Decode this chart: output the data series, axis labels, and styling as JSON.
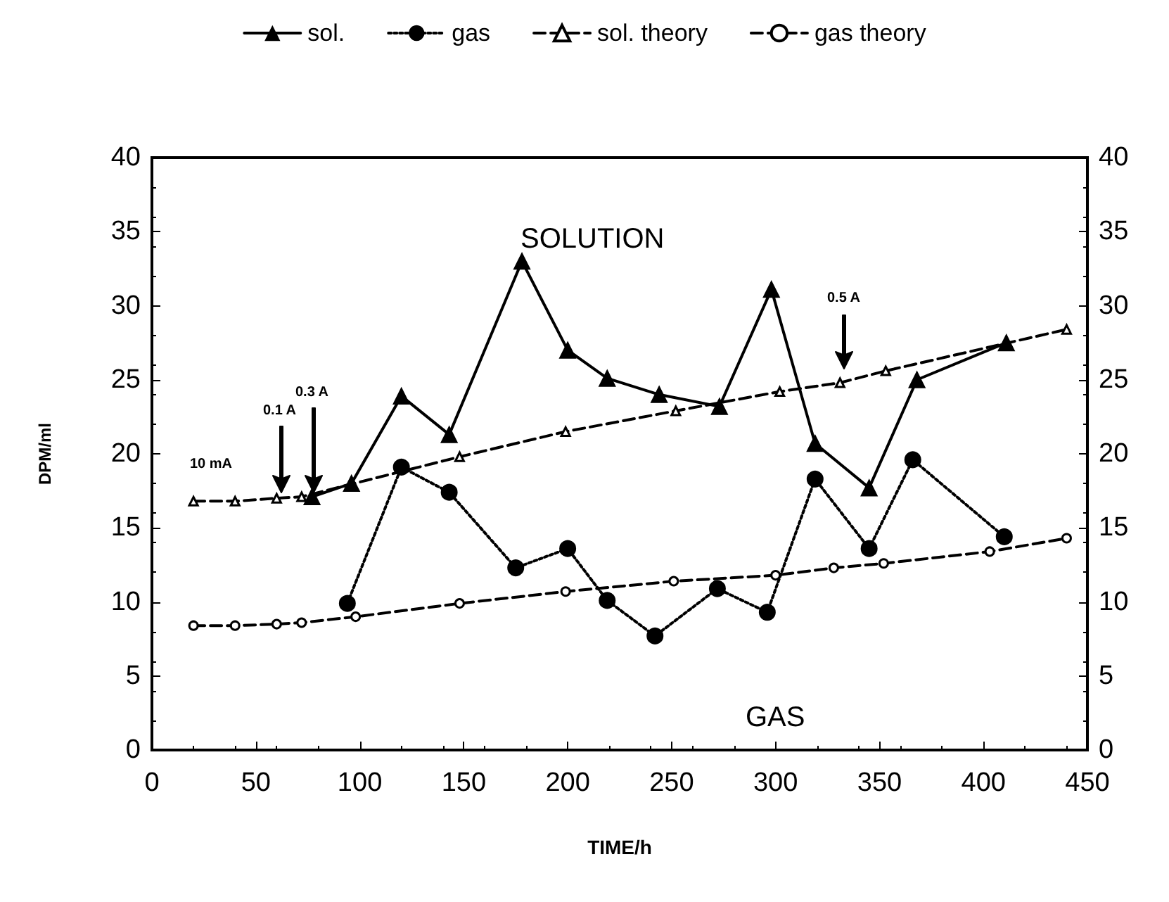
{
  "chart_data": {
    "type": "line",
    "xlabel": "TIME/h",
    "ylabel": "DPM/ml",
    "xlim": [
      0,
      450
    ],
    "xticks": [
      0,
      50,
      100,
      150,
      200,
      250,
      300,
      350,
      400,
      450
    ],
    "ylim": [
      0,
      40
    ],
    "yticks": [
      0,
      5,
      10,
      15,
      20,
      25,
      30,
      35,
      40
    ],
    "y2lim": [
      0,
      40
    ],
    "y2ticks": [
      0,
      5,
      10,
      15,
      20,
      25,
      30,
      35,
      40
    ],
    "grid": false,
    "legend": "top",
    "series": [
      {
        "name": "sol.",
        "color": "#000000",
        "marker": "triangle",
        "line_style": "solid",
        "x": [
          77,
          96,
          120,
          143,
          178,
          200,
          219,
          244,
          273,
          298,
          319,
          345,
          368,
          411
        ],
        "values": [
          17.1,
          18.0,
          23.9,
          21.3,
          33.0,
          27.0,
          25.1,
          24.0,
          23.2,
          31.1,
          20.7,
          17.7,
          25.0,
          27.5
        ]
      },
      {
        "name": "gas",
        "color": "#000000",
        "marker": "circle",
        "line_style": "dotted",
        "x": [
          94,
          120,
          143,
          175,
          200,
          219,
          242,
          272,
          296,
          319,
          345,
          366,
          410
        ],
        "values": [
          9.9,
          19.1,
          17.4,
          12.3,
          13.6,
          10.1,
          7.7,
          10.9,
          9.3,
          18.3,
          13.6,
          19.6,
          14.4
        ]
      },
      {
        "name": "sol. theory",
        "color": "#000000",
        "marker": "triangle",
        "line_style": "dashed",
        "x": [
          20,
          40,
          60,
          72,
          148,
          199,
          252,
          302,
          331,
          353,
          440
        ],
        "values": [
          16.8,
          16.8,
          17.0,
          17.1,
          19.8,
          21.5,
          22.9,
          24.2,
          24.8,
          25.6,
          28.4
        ]
      },
      {
        "name": "gas theory",
        "color": "#000000",
        "marker": "circle",
        "line_style": "dashed",
        "x": [
          20,
          40,
          60,
          72,
          98,
          148,
          199,
          251,
          300,
          328,
          352,
          403,
          440
        ],
        "values": [
          8.4,
          8.4,
          8.5,
          8.6,
          9.0,
          9.9,
          10.7,
          11.4,
          11.8,
          12.3,
          12.6,
          13.4,
          14.3
        ]
      }
    ],
    "annotations": [
      "SOLUTION",
      "GAS",
      "10 mA",
      "0.1 A",
      "0.3 A",
      "0.5 A"
    ]
  }
}
